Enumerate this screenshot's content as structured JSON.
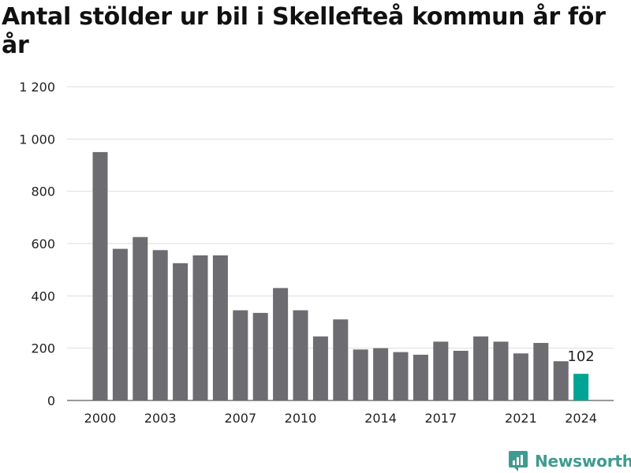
{
  "title": "Antal stölder ur bil i Skellefteå kommun år för år",
  "brand": {
    "name": "Newsworthy",
    "color": "#3e9b8f"
  },
  "colors": {
    "bar": "#6d6c71",
    "highlight": "#00a495",
    "grid": "#dddddd"
  },
  "chart_data": {
    "type": "bar",
    "title": "Antal stölder ur bil i Skellefteå kommun år för år",
    "xlabel": "",
    "ylabel": "",
    "categories": [
      "2000",
      "2001",
      "2002",
      "2003",
      "2004",
      "2005",
      "2006",
      "2007",
      "2008",
      "2009",
      "2010",
      "2011",
      "2012",
      "2013",
      "2014",
      "2015",
      "2016",
      "2017",
      "2018",
      "2019",
      "2020",
      "2021",
      "2022",
      "2023",
      "2024"
    ],
    "values": [
      950,
      580,
      625,
      575,
      525,
      555,
      555,
      345,
      335,
      430,
      345,
      245,
      310,
      195,
      200,
      185,
      175,
      225,
      190,
      245,
      225,
      180,
      220,
      150,
      102
    ],
    "highlight_index": 24,
    "highlight_label": "102",
    "ylim": [
      0,
      1200
    ],
    "yticks": [
      0,
      200,
      400,
      600,
      800,
      1000,
      1200
    ],
    "ytick_labels": [
      "0",
      "200",
      "400",
      "600",
      "800",
      "1 000",
      "1 200"
    ],
    "xtick_labels": [
      "2000",
      "2003",
      "2007",
      "2010",
      "2014",
      "2017",
      "2021",
      "2024"
    ],
    "grid": true,
    "legend": "none"
  }
}
